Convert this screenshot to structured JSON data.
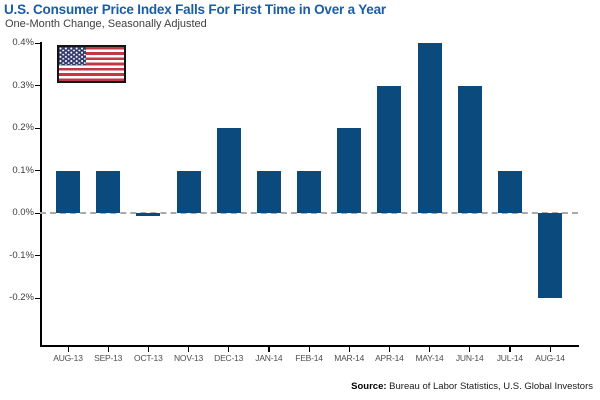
{
  "header": {
    "title": "U.S. Consumer Price Index Falls For First Time in Over a Year",
    "subtitle": "One-Month Change, Seasonally Adjusted"
  },
  "flag": {
    "icon": "us-flag-icon",
    "country": "United States"
  },
  "source": {
    "label": "Source:",
    "text": " Bureau of Labor Statistics, U.S. Global Investors"
  },
  "colors": {
    "title_blue": "#1A5DA6",
    "bar_navy": "#0A4A7C",
    "axis_black": "#000000",
    "x_label_gray": "#4D4D4F",
    "y_label_gray": "#3D3D3F",
    "zero_dash_gray": "#A7A9AC",
    "flag_red": "#C23844",
    "flag_canton_blue": "#333A6B",
    "background": "#FFFFFF"
  },
  "chart_data": {
    "type": "bar",
    "title": "U.S. Consumer Price Index Falls For First Time in Over a Year",
    "subtitle": "One-Month Change, Seasonally Adjusted",
    "xlabel": "",
    "ylabel": "",
    "unit": "%",
    "categories": [
      "AUG-13",
      "SEP-13",
      "OCT-13",
      "NOV-13",
      "DEC-13",
      "JAN-14",
      "FEB-14",
      "MAR-14",
      "APR-14",
      "MAY-14",
      "JUN-14",
      "JUL-14",
      "AUG-14"
    ],
    "values": [
      0.1,
      0.1,
      0.0,
      0.1,
      0.2,
      0.1,
      0.1,
      0.2,
      0.3,
      0.4,
      0.3,
      0.1,
      -0.2
    ],
    "y_ticks": [
      {
        "value": 0.4,
        "label": "0.4%"
      },
      {
        "value": 0.3,
        "label": "0.3%"
      },
      {
        "value": 0.2,
        "label": "0.2%"
      },
      {
        "value": 0.1,
        "label": "0.1%"
      },
      {
        "value": 0.0,
        "label": "0.0%"
      },
      {
        "value": -0.1,
        "label": "-0.1%"
      },
      {
        "value": -0.2,
        "label": "-0.2%"
      }
    ],
    "ylim": [
      -0.31,
      0.4
    ],
    "grid": false,
    "zero_line": "dashed",
    "legend": null
  }
}
